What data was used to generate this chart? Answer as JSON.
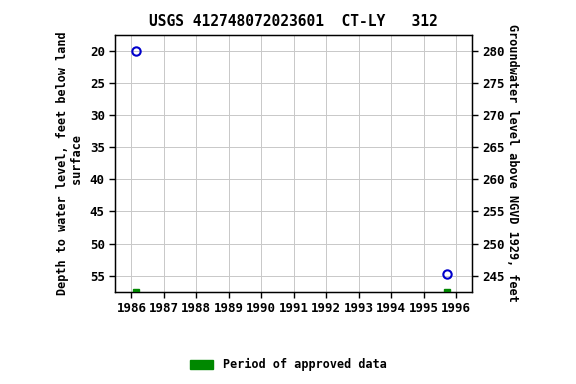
{
  "title": "USGS 412748072023601  CT-LY   312",
  "points": [
    {
      "year": 1986.15,
      "depth": 20.0
    },
    {
      "year": 1995.72,
      "depth": 54.7
    }
  ],
  "green_squares": [
    {
      "year": 1986.15
    },
    {
      "year": 1995.72
    }
  ],
  "xlim": [
    1985.5,
    1996.5
  ],
  "xticks": [
    1986,
    1987,
    1988,
    1989,
    1990,
    1991,
    1992,
    1993,
    1994,
    1995,
    1996
  ],
  "ylim_left": [
    57.5,
    17.5
  ],
  "yticks_left": [
    20,
    25,
    30,
    35,
    40,
    45,
    50,
    55
  ],
  "ylim_right": [
    242.5,
    282.5
  ],
  "yticks_right": [
    245,
    250,
    255,
    260,
    265,
    270,
    275,
    280
  ],
  "ylabel_left": "Depth to water level, feet below land\n surface",
  "ylabel_right": "Groundwater level above NGVD 1929, feet",
  "point_color": "#0000cc",
  "square_color": "#008800",
  "background_color": "#ffffff",
  "grid_color": "#c8c8c8",
  "title_fontsize": 10.5,
  "label_fontsize": 8.5,
  "tick_fontsize": 9,
  "legend_label": "Period of approved data",
  "legend_color": "#008800"
}
